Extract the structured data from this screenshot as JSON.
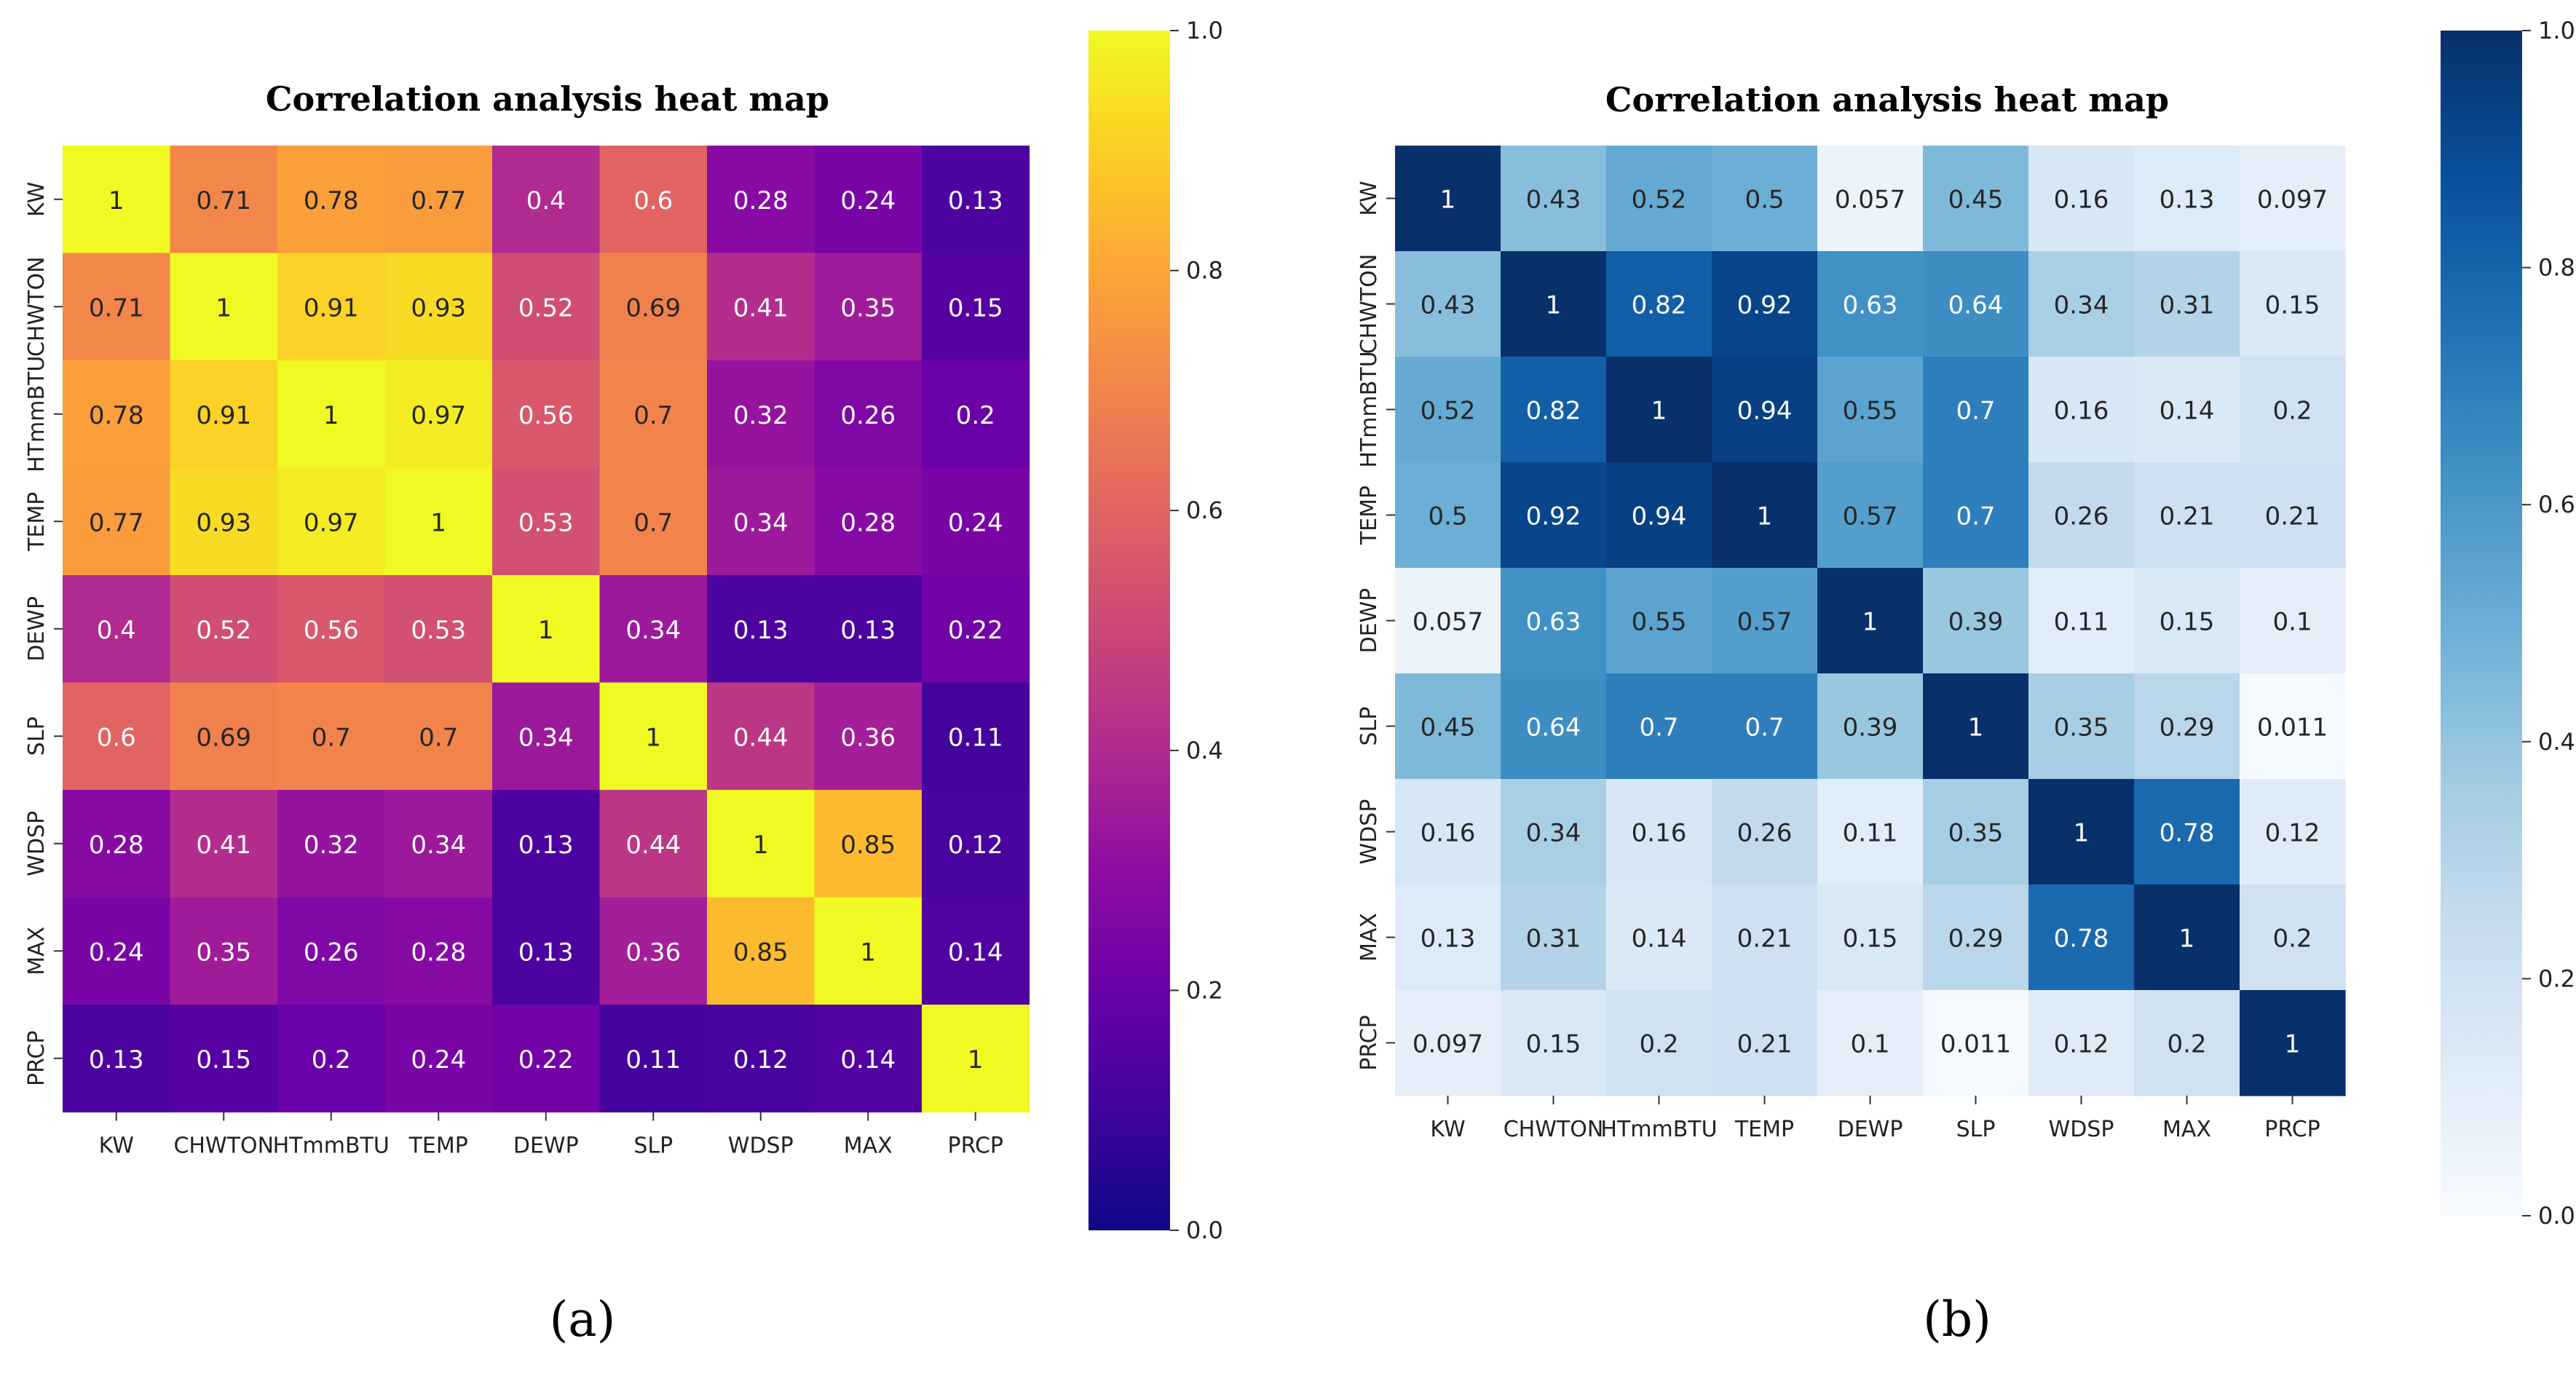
{
  "chart_data": [
    {
      "type": "heatmap",
      "panel_label": "(a)",
      "title": "Correlation analysis heat map",
      "colormap": "plasma",
      "x_labels": [
        "KW",
        "CHWTON",
        "HTmmBTU",
        "TEMP",
        "DEWP",
        "SLP",
        "WDSP",
        "MAX",
        "PRCP"
      ],
      "y_labels": [
        "KW",
        "CHWTON",
        "HTmmBTU",
        "TEMP",
        "DEWP",
        "SLP",
        "WDSP",
        "MAX",
        "PRCP"
      ],
      "values": [
        [
          "1",
          "0.71",
          "0.78",
          "0.77",
          "0.4",
          "0.6",
          "0.28",
          "0.24",
          "0.13"
        ],
        [
          "0.71",
          "1",
          "0.91",
          "0.93",
          "0.52",
          "0.69",
          "0.41",
          "0.35",
          "0.15"
        ],
        [
          "0.78",
          "0.91",
          "1",
          "0.97",
          "0.56",
          "0.7",
          "0.32",
          "0.26",
          "0.2"
        ],
        [
          "0.77",
          "0.93",
          "0.97",
          "1",
          "0.53",
          "0.7",
          "0.34",
          "0.28",
          "0.24"
        ],
        [
          "0.4",
          "0.52",
          "0.56",
          "0.53",
          "1",
          "0.34",
          "0.13",
          "0.13",
          "0.22"
        ],
        [
          "0.6",
          "0.69",
          "0.7",
          "0.7",
          "0.34",
          "1",
          "0.44",
          "0.36",
          "0.11"
        ],
        [
          "0.28",
          "0.41",
          "0.32",
          "0.34",
          "0.13",
          "0.44",
          "1",
          "0.85",
          "0.12"
        ],
        [
          "0.24",
          "0.35",
          "0.26",
          "0.28",
          "0.13",
          "0.36",
          "0.85",
          "1",
          "0.14"
        ],
        [
          "0.13",
          "0.15",
          "0.2",
          "0.24",
          "0.22",
          "0.11",
          "0.12",
          "0.14",
          "1"
        ]
      ],
      "colorbar": {
        "range": [
          0,
          1
        ],
        "ticks": [
          "0.0",
          "0.2",
          "0.4",
          "0.6",
          "0.8",
          "1.0"
        ]
      }
    },
    {
      "type": "heatmap",
      "panel_label": "(b)",
      "title": "Correlation analysis heat map",
      "colormap": "Blues",
      "x_labels": [
        "KW",
        "CHWTON",
        "HTmmBTU",
        "TEMP",
        "DEWP",
        "SLP",
        "WDSP",
        "MAX",
        "PRCP"
      ],
      "y_labels": [
        "KW",
        "CHWTON",
        "HTmmBTU",
        "TEMP",
        "DEWP",
        "SLP",
        "WDSP",
        "MAX",
        "PRCP"
      ],
      "values": [
        [
          "1",
          "0.43",
          "0.52",
          "0.5",
          "0.057",
          "0.45",
          "0.16",
          "0.13",
          "0.097"
        ],
        [
          "0.43",
          "1",
          "0.82",
          "0.92",
          "0.63",
          "0.64",
          "0.34",
          "0.31",
          "0.15"
        ],
        [
          "0.52",
          "0.82",
          "1",
          "0.94",
          "0.55",
          "0.7",
          "0.16",
          "0.14",
          "0.2"
        ],
        [
          "0.5",
          "0.92",
          "0.94",
          "1",
          "0.57",
          "0.7",
          "0.26",
          "0.21",
          "0.21"
        ],
        [
          "0.057",
          "0.63",
          "0.55",
          "0.57",
          "1",
          "0.39",
          "0.11",
          "0.15",
          "0.1"
        ],
        [
          "0.45",
          "0.64",
          "0.7",
          "0.7",
          "0.39",
          "1",
          "0.35",
          "0.29",
          "0.011"
        ],
        [
          "0.16",
          "0.34",
          "0.16",
          "0.26",
          "0.11",
          "0.35",
          "1",
          "0.78",
          "0.12"
        ],
        [
          "0.13",
          "0.31",
          "0.14",
          "0.21",
          "0.15",
          "0.29",
          "0.78",
          "1",
          "0.2"
        ],
        [
          "0.097",
          "0.15",
          "0.2",
          "0.21",
          "0.1",
          "0.011",
          "0.12",
          "0.2",
          "1"
        ]
      ],
      "colorbar": {
        "range": [
          0,
          1
        ],
        "ticks": [
          "0.0",
          "0.2",
          "0.4",
          "0.6",
          "0.8",
          "1.0"
        ]
      }
    }
  ]
}
